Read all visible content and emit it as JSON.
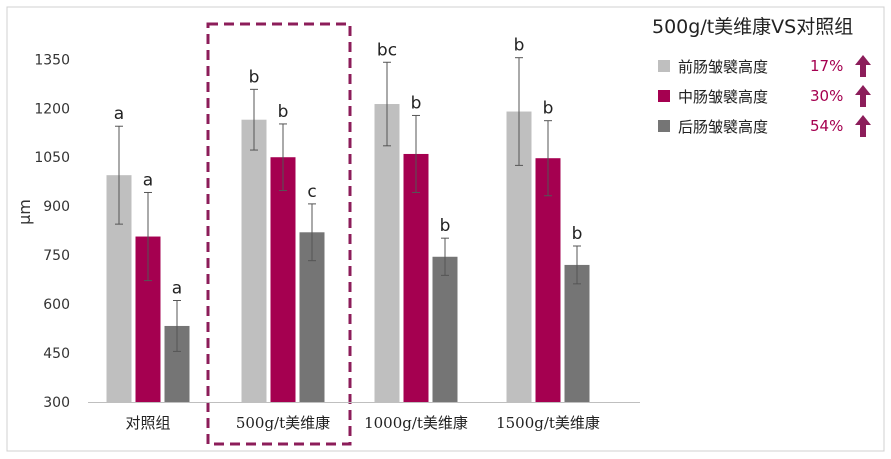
{
  "chart_data": {
    "type": "bar",
    "title": "",
    "xlabel": "",
    "ylabel": "μm",
    "ylim": [
      300,
      1400
    ],
    "yticks": [
      300,
      450,
      600,
      750,
      900,
      1050,
      1200,
      1350
    ],
    "grid": false,
    "categories": [
      "对照组",
      "500g/t美维康",
      "1000g/t美维康",
      "1500g/t美维康"
    ],
    "series": [
      {
        "name": "前肠皱襞高度",
        "color": "#bfbfbf",
        "values": [
          995,
          1165,
          1213,
          1190
        ],
        "errors": [
          150,
          93,
          128,
          165
        ],
        "labels": [
          "a",
          "b",
          "bc",
          "b"
        ]
      },
      {
        "name": "中肠皱襞高度",
        "color": "#a50050",
        "values": [
          807,
          1050,
          1060,
          1047
        ],
        "errors": [
          135,
          102,
          118,
          115
        ],
        "labels": [
          "a",
          "b",
          "b",
          "b"
        ]
      },
      {
        "name": "后肠皱襞高度",
        "color": "#757575",
        "values": [
          533,
          820,
          745,
          720
        ],
        "errors": [
          78,
          87,
          57,
          58
        ],
        "labels": [
          "a",
          "c",
          "b",
          "b"
        ]
      }
    ],
    "highlight_category_index": 1,
    "highlight_color": "#8c1d5a",
    "legend": {
      "title": "500g/t美维康VS对照组",
      "placement": "top-right",
      "items": [
        {
          "label": "前肠皱襞高度",
          "change": "17%",
          "color": "#bfbfbf",
          "icon": "up-arrow-icon"
        },
        {
          "label": "中肠皱襞高度",
          "change": "30%",
          "color": "#a50050",
          "icon": "up-arrow-icon"
        },
        {
          "label": "后肠皱襞高度",
          "change": "54%",
          "color": "#757575",
          "icon": "up-arrow-icon"
        }
      ],
      "change_color": "#a50050",
      "arrow_color": "#8c1d5a"
    }
  }
}
